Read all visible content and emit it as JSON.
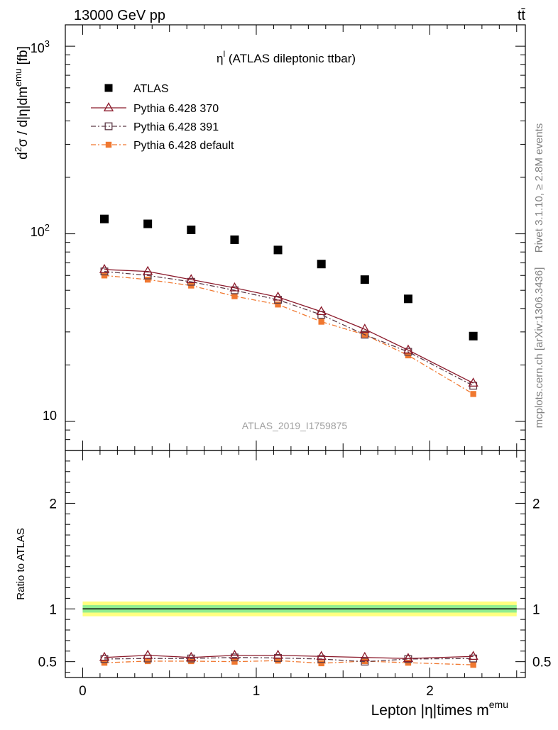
{
  "header": {
    "left": "13000 GeV pp",
    "right": "tt̄"
  },
  "side_labels": {
    "top": "Rivet 3.1.10, ≥ 2.8M events",
    "bottom": "mcplots.cern.ch [arXiv:1306.3436]"
  },
  "colors": {
    "atlas": "#000000",
    "pythia_370": "#8b1a2b",
    "pythia_391": "#5e3b48",
    "pythia_default": "#f07830",
    "band_inner": "#90ee90",
    "band_outer": "#ffff80"
  },
  "chart_data": [
    {
      "type": "scatter",
      "title_main": "η",
      "title_sup": "l",
      "title_rest": " (ATLAS dileptonic ttbar)",
      "ylabel": "d²σ / d|η|dm^emu [fb]",
      "ylabel_parts": {
        "d": "d",
        "two": "2",
        "sigma_part": "σ / d|η|dm",
        "sup": "emu",
        "unit": " [fb]"
      },
      "yscale": "log",
      "ylim": [
        7,
        1300
      ],
      "ytick_labels": {
        "e1": "10",
        "e2": "10",
        "e2sup": "2",
        "e3": "10",
        "e3sup": "3"
      },
      "watermark": "ATLAS_2019_I1759875",
      "legend_position": "top-left",
      "x": [
        0.125,
        0.375,
        0.625,
        0.875,
        1.125,
        1.375,
        1.625,
        1.875,
        2.25
      ],
      "series": [
        {
          "name": "ATLAS",
          "marker": "square",
          "values": [
            120,
            113,
            105,
            93,
            82,
            69,
            57,
            45,
            28.5
          ]
        },
        {
          "name": "Pythia 6.428 370",
          "marker": "triangle",
          "line": "solid",
          "values": [
            64.5,
            63,
            57,
            51.5,
            46,
            38.5,
            31,
            24,
            16
          ]
        },
        {
          "name": "Pythia 6.428 391",
          "marker": "open-square",
          "line": "dash-dot",
          "values": [
            63,
            60,
            55.5,
            50,
            44.5,
            37,
            29,
            23.5,
            15.5
          ]
        },
        {
          "name": "Pythia 6.428 default",
          "marker": "filled-square",
          "line": "dash-dot",
          "values": [
            60,
            57,
            53,
            46.5,
            42,
            34,
            29,
            22.5,
            14
          ]
        }
      ]
    },
    {
      "type": "line",
      "ylabel": "Ratio to ATLAS",
      "xlabel_main": "Lepton |η|times m",
      "xlabel_sup": "emu",
      "xlim": [
        -0.1,
        2.55
      ],
      "ylim": [
        0.35,
        2.5
      ],
      "x_ticks": [
        0,
        1,
        2
      ],
      "x_tick_labels": [
        "0",
        "1",
        "2"
      ],
      "y_ticks": [
        0.5,
        1,
        2
      ],
      "y_tick_labels": [
        "0.5",
        "1",
        "2"
      ],
      "x": [
        0.125,
        0.375,
        0.625,
        0.875,
        1.125,
        1.375,
        1.625,
        1.875,
        2.25
      ],
      "reference": 1.0,
      "band_inner": 0.035,
      "band_outer": 0.07,
      "series": [
        {
          "name": "Pythia 6.428 370",
          "values": [
            0.54,
            0.56,
            0.54,
            0.56,
            0.56,
            0.55,
            0.54,
            0.53,
            0.55
          ]
        },
        {
          "name": "Pythia 6.428 391",
          "values": [
            0.525,
            0.53,
            0.53,
            0.54,
            0.535,
            0.525,
            0.5,
            0.525,
            0.53
          ]
        },
        {
          "name": "Pythia 6.428 default",
          "values": [
            0.49,
            0.505,
            0.505,
            0.5,
            0.51,
            0.485,
            0.505,
            0.49,
            0.47
          ]
        }
      ]
    }
  ]
}
